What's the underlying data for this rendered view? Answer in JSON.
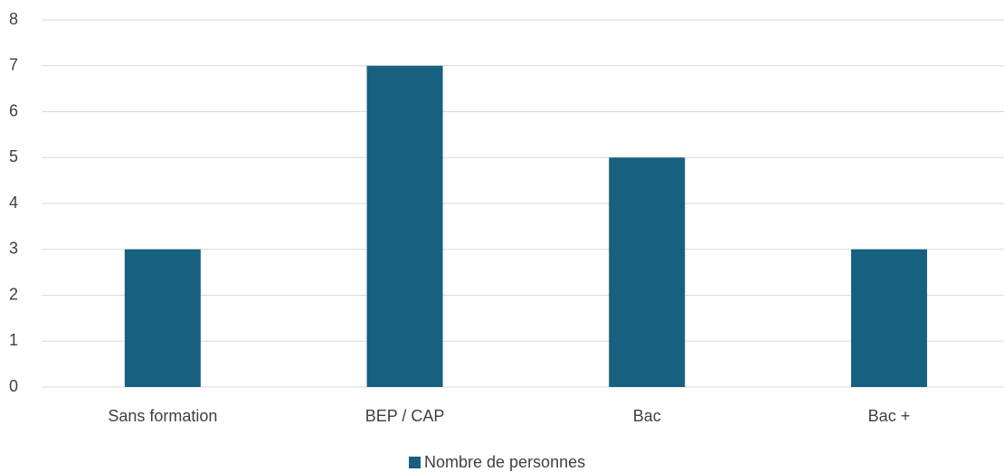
{
  "chart_data": {
    "type": "bar",
    "categories": [
      "Sans formation",
      "BEP / CAP",
      "Bac",
      "Bac +"
    ],
    "series": [
      {
        "name": "Nombre de personnes",
        "color": "#17607f",
        "values": [
          3,
          7,
          5,
          3
        ]
      }
    ],
    "ylim": [
      0,
      8
    ],
    "yticks": [
      0,
      1,
      2,
      3,
      4,
      5,
      6,
      7,
      8
    ],
    "grid": true,
    "legend": "bottom"
  }
}
